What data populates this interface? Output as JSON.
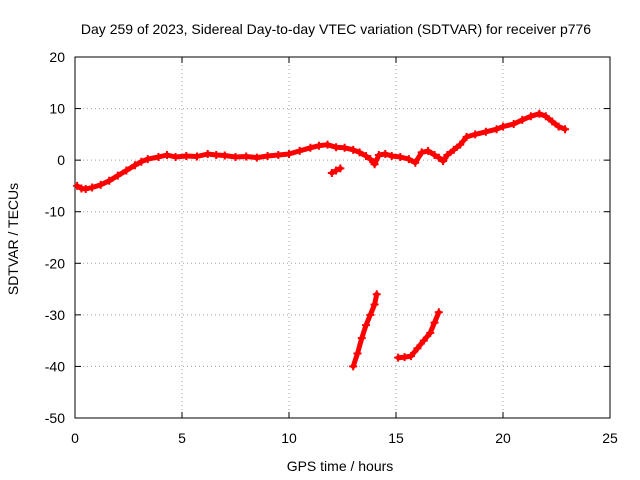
{
  "chart_data": {
    "type": "scatter",
    "title": "Day 259 of 2023, Sidereal Day-to-day VTEC variation (SDTVAR) for receiver p776",
    "xlabel": "GPS time / hours",
    "ylabel": "SDTVAR / TECUs",
    "xlim": [
      0,
      25
    ],
    "ylim": [
      -50,
      20
    ],
    "xticks": [
      0,
      5,
      10,
      15,
      20,
      25
    ],
    "yticks": [
      -50,
      -40,
      -30,
      -20,
      -10,
      0,
      10,
      20
    ],
    "xtick_labels": [
      "0",
      "5",
      "10",
      "15",
      "20",
      "25"
    ],
    "ytick_labels": [
      "-50",
      "-40",
      "-30",
      "-20",
      "-10",
      "0",
      "10",
      "20"
    ],
    "grid": true,
    "marker_color": "#ff0000",
    "series": [
      {
        "name": "main",
        "points": [
          [
            0.1,
            -5.0
          ],
          [
            0.3,
            -5.5
          ],
          [
            0.5,
            -5.6
          ],
          [
            0.8,
            -5.3
          ],
          [
            1.2,
            -4.8
          ],
          [
            1.6,
            -4.0
          ],
          [
            2.0,
            -3.0
          ],
          [
            2.4,
            -2.0
          ],
          [
            2.8,
            -1.0
          ],
          [
            3.1,
            -0.3
          ],
          [
            3.4,
            0.2
          ],
          [
            3.9,
            0.6
          ],
          [
            4.3,
            1.0
          ],
          [
            4.7,
            0.6
          ],
          [
            5.2,
            0.8
          ],
          [
            5.7,
            0.7
          ],
          [
            6.2,
            1.2
          ],
          [
            6.6,
            1.0
          ],
          [
            7.0,
            0.9
          ],
          [
            7.5,
            0.6
          ],
          [
            8.0,
            0.7
          ],
          [
            8.5,
            0.5
          ],
          [
            9.0,
            0.8
          ],
          [
            9.5,
            1.0
          ],
          [
            10.0,
            1.2
          ],
          [
            10.5,
            1.8
          ],
          [
            11.0,
            2.4
          ],
          [
            11.4,
            2.8
          ],
          [
            11.8,
            3.0
          ],
          [
            12.2,
            2.5
          ],
          [
            12.6,
            2.4
          ],
          [
            13.0,
            2.0
          ],
          [
            13.3,
            1.5
          ],
          [
            13.6,
            0.8
          ],
          [
            13.8,
            0.2
          ],
          [
            14.0,
            -0.8
          ],
          [
            14.2,
            1.0
          ],
          [
            14.5,
            1.2
          ],
          [
            14.8,
            0.8
          ],
          [
            15.2,
            0.6
          ],
          [
            15.6,
            0.2
          ],
          [
            15.9,
            -0.5
          ],
          [
            16.2,
            1.5
          ],
          [
            16.5,
            1.8
          ],
          [
            16.8,
            1.0
          ],
          [
            17.0,
            0.5
          ],
          [
            17.2,
            -0.2
          ],
          [
            17.4,
            1.0
          ],
          [
            17.7,
            2.0
          ],
          [
            18.0,
            3.0
          ],
          [
            18.3,
            4.5
          ],
          [
            18.7,
            5.0
          ],
          [
            19.2,
            5.5
          ],
          [
            19.7,
            6.0
          ],
          [
            20.0,
            6.5
          ],
          [
            20.5,
            7.0
          ],
          [
            20.9,
            7.8
          ],
          [
            21.3,
            8.5
          ],
          [
            21.7,
            9.0
          ],
          [
            22.0,
            8.5
          ],
          [
            22.3,
            7.5
          ],
          [
            22.6,
            6.5
          ],
          [
            22.9,
            6.0
          ]
        ]
      },
      {
        "name": "outlier-segment",
        "points": [
          [
            12.0,
            -2.5
          ],
          [
            12.2,
            -2.0
          ],
          [
            12.4,
            -1.6
          ]
        ]
      },
      {
        "name": "low-arc-1",
        "points": [
          [
            13.0,
            -40.0
          ],
          [
            13.2,
            -37.5
          ],
          [
            13.4,
            -34.5
          ],
          [
            13.6,
            -32.0
          ],
          [
            13.8,
            -30.0
          ],
          [
            14.0,
            -28.0
          ],
          [
            14.1,
            -26.0
          ]
        ]
      },
      {
        "name": "low-arc-2",
        "points": [
          [
            15.1,
            -38.3
          ],
          [
            15.4,
            -38.2
          ],
          [
            15.7,
            -38.0
          ],
          [
            16.0,
            -36.5
          ],
          [
            16.3,
            -35.0
          ],
          [
            16.6,
            -33.5
          ],
          [
            16.8,
            -31.5
          ],
          [
            17.0,
            -29.5
          ]
        ]
      }
    ]
  }
}
